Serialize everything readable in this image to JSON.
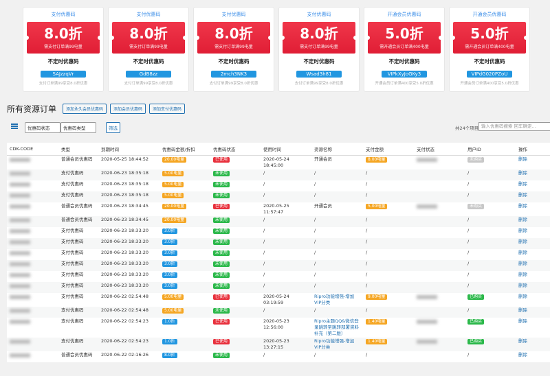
{
  "cards": [
    {
      "header": "支付优惠码",
      "discount": "8.0折",
      "condition": "需支付订单满99电量",
      "tag": "不定时优惠码",
      "code": "SAJzzqVr",
      "note": "支付订单满99享受8.0折优惠"
    },
    {
      "header": "支付优惠码",
      "discount": "8.0折",
      "condition": "需支付订单满99电量",
      "tag": "不定时优惠码",
      "code": "GdB8zz",
      "note": "支付订单满99享受8.0折优惠"
    },
    {
      "header": "支付优惠码",
      "discount": "8.0折",
      "condition": "需支付订单满99电量",
      "tag": "不定时优惠码",
      "code": "2mch3NK3",
      "note": "支付订单满99享受8.0折优惠"
    },
    {
      "header": "支付优惠码",
      "discount": "8.0折",
      "condition": "需支付订单满99电量",
      "tag": "不定时优惠码",
      "code": "Wsad3h81",
      "note": "支付订单满99享受8.0折优惠"
    },
    {
      "header": "开通会员优惠码",
      "discount": "5.0折",
      "condition": "需开通会员订单满400电量",
      "tag": "不定时优惠码",
      "code": "VIPkXyJoGKy3",
      "note": "开通会员订单满400享受5.0折优惠"
    },
    {
      "header": "开通会员优惠码",
      "discount": "5.0折",
      "condition": "需开通会员订单满400电量",
      "tag": "不定时优惠码",
      "code": "VIPdG020PZoU",
      "note": "开通会员订单满400享受5.0折优惠"
    }
  ],
  "page_title": "所有资源订单",
  "buttons": [
    "添加永久会员优惠码",
    "添加会员优惠码",
    "添加支付优惠码"
  ],
  "filters": {
    "status": "优惠码状态",
    "type": "优惠码类型",
    "submit": "筛选",
    "count": "共24个项目",
    "search_placeholder": "输入优惠码搜索 回车确定..."
  },
  "table": {
    "headers": [
      "CDK-CODE",
      "类型",
      "到期时间",
      "优惠码金额/折扣",
      "优惠码状态",
      "使用时间",
      "资源名称",
      "支付金额",
      "支付状态",
      "用户ID",
      "操作"
    ],
    "rows": [
      [
        "普通会员优惠码",
        "2020-05-25 18:44:52",
        {
          "text": "20.00电量",
          "color": "#f5a623"
        },
        {
          "text": "已使用",
          "color": "#e8303c"
        },
        "2020-05-24 18:45:00",
        "开通会员",
        {
          "text": "8.00电量",
          "color": "#f5a623"
        },
        {
          "text": "未购买",
          "color": "#c8c8c8"
        },
        "删除"
      ],
      [
        "支付优惠码",
        "2020-06-23 18:35:18",
        {
          "text": "5.00电量",
          "color": "#f5a623"
        },
        {
          "text": "未使用",
          "color": "#2bb84a"
        },
        "/",
        "/",
        "/",
        "/",
        "删除"
      ],
      [
        "支付优惠码",
        "2020-06-23 18:35:18",
        {
          "text": "5.00电量",
          "color": "#f5a623"
        },
        {
          "text": "未使用",
          "color": "#2bb84a"
        },
        "/",
        "/",
        "/",
        "/",
        "删除"
      ],
      [
        "支付优惠码",
        "2020-06-23 18:35:18",
        {
          "text": "5.00电量",
          "color": "#f5a623"
        },
        {
          "text": "未使用",
          "color": "#2bb84a"
        },
        "/",
        "/",
        "/",
        "/",
        "删除"
      ],
      [
        "普通会员优惠码",
        "2020-06-23 18:34:45",
        {
          "text": "20.00电量",
          "color": "#f5a623"
        },
        {
          "text": "已使用",
          "color": "#e8303c"
        },
        "2020-05-25 11:57:47",
        "开通会员",
        {
          "text": "5.00电量",
          "color": "#f5a623"
        },
        {
          "text": "未购买",
          "color": "#c8c8c8"
        },
        "删除"
      ],
      [
        "普通会员优惠码",
        "2020-06-23 18:34:45",
        {
          "text": "20.00电量",
          "color": "#f5a623"
        },
        {
          "text": "未使用",
          "color": "#2bb84a"
        },
        "/",
        "/",
        "/",
        "/",
        "删除"
      ],
      [
        "支付优惠码",
        "2020-06-23 18:33:20",
        {
          "text": "3.0折",
          "color": "#2196e0"
        },
        {
          "text": "未使用",
          "color": "#2bb84a"
        },
        "/",
        "/",
        "/",
        "/",
        "删除"
      ],
      [
        "支付优惠码",
        "2020-06-23 18:33:20",
        {
          "text": "3.0折",
          "color": "#2196e0"
        },
        {
          "text": "未使用",
          "color": "#2bb84a"
        },
        "/",
        "/",
        "/",
        "/",
        "删除"
      ],
      [
        "支付优惠码",
        "2020-06-23 18:33:20",
        {
          "text": "3.0折",
          "color": "#2196e0"
        },
        {
          "text": "未使用",
          "color": "#2bb84a"
        },
        "/",
        "/",
        "/",
        "/",
        "删除"
      ],
      [
        "支付优惠码",
        "2020-06-23 18:33:20",
        {
          "text": "3.0折",
          "color": "#2196e0"
        },
        {
          "text": "未使用",
          "color": "#2bb84a"
        },
        "/",
        "/",
        "/",
        "/",
        "删除"
      ],
      [
        "支付优惠码",
        "2020-06-23 18:33:20",
        {
          "text": "3.0折",
          "color": "#2196e0"
        },
        {
          "text": "未使用",
          "color": "#2bb84a"
        },
        "/",
        "/",
        "/",
        "/",
        "删除"
      ],
      [
        "支付优惠码",
        "2020-06-23 18:33:20",
        {
          "text": "3.0折",
          "color": "#2196e0"
        },
        {
          "text": "未使用",
          "color": "#2bb84a"
        },
        "/",
        "/",
        "/",
        "/",
        "删除"
      ],
      [
        "支付优惠码",
        "2020-06-22 02:54:48",
        {
          "text": "5.00电量",
          "color": "#f5a623"
        },
        {
          "text": "已使用",
          "color": "#e8303c"
        },
        "2020-05-24 03:19:59",
        {
          "text": "Ripro功能增强-增加VIP分类",
          "link": true
        },
        {
          "text": "9.00电量",
          "color": "#f5a623"
        },
        {
          "text": "已购买",
          "color": "#2bb84a"
        },
        "删除"
      ],
      [
        "支付优惠码",
        "2020-06-22 02:54:48",
        {
          "text": "5.00电量",
          "color": "#f5a623"
        },
        {
          "text": "未使用",
          "color": "#2bb84a"
        },
        "/",
        "/",
        "/",
        "/",
        "删除"
      ],
      [
        "支付优惠码",
        "2020-06-22 02:54:23",
        {
          "text": "1.0折",
          "color": "#2196e0"
        },
        {
          "text": "已使用",
          "color": "#e8303c"
        },
        "2020-05-23 12:56:00",
        {
          "text": "Ripro主题QQ&微信登录跳转至跳转部署资料补充（第二版）",
          "link": true
        },
        {
          "text": "1.40电量",
          "color": "#f5a623"
        },
        {
          "text": "已购买",
          "color": "#2bb84a"
        },
        "删除"
      ],
      [
        "支付优惠码",
        "2020-06-22 02:54:23",
        {
          "text": "1.0折",
          "color": "#2196e0"
        },
        {
          "text": "已使用",
          "color": "#e8303c"
        },
        "2020-05-23 13:27:15",
        {
          "text": "Ripro功能增强-增加VIP分类",
          "link": true
        },
        {
          "text": "1.40电量",
          "color": "#f5a623"
        },
        {
          "text": "已购买",
          "color": "#2bb84a"
        },
        "删除"
      ],
      [
        "普通会员优惠码",
        "2020-06-22 02:16:26",
        {
          "text": "8.0折",
          "color": "#2196e0"
        },
        {
          "text": "未使用",
          "color": "#2bb84a"
        },
        "/",
        "/",
        "/",
        "/",
        "删除"
      ]
    ]
  }
}
